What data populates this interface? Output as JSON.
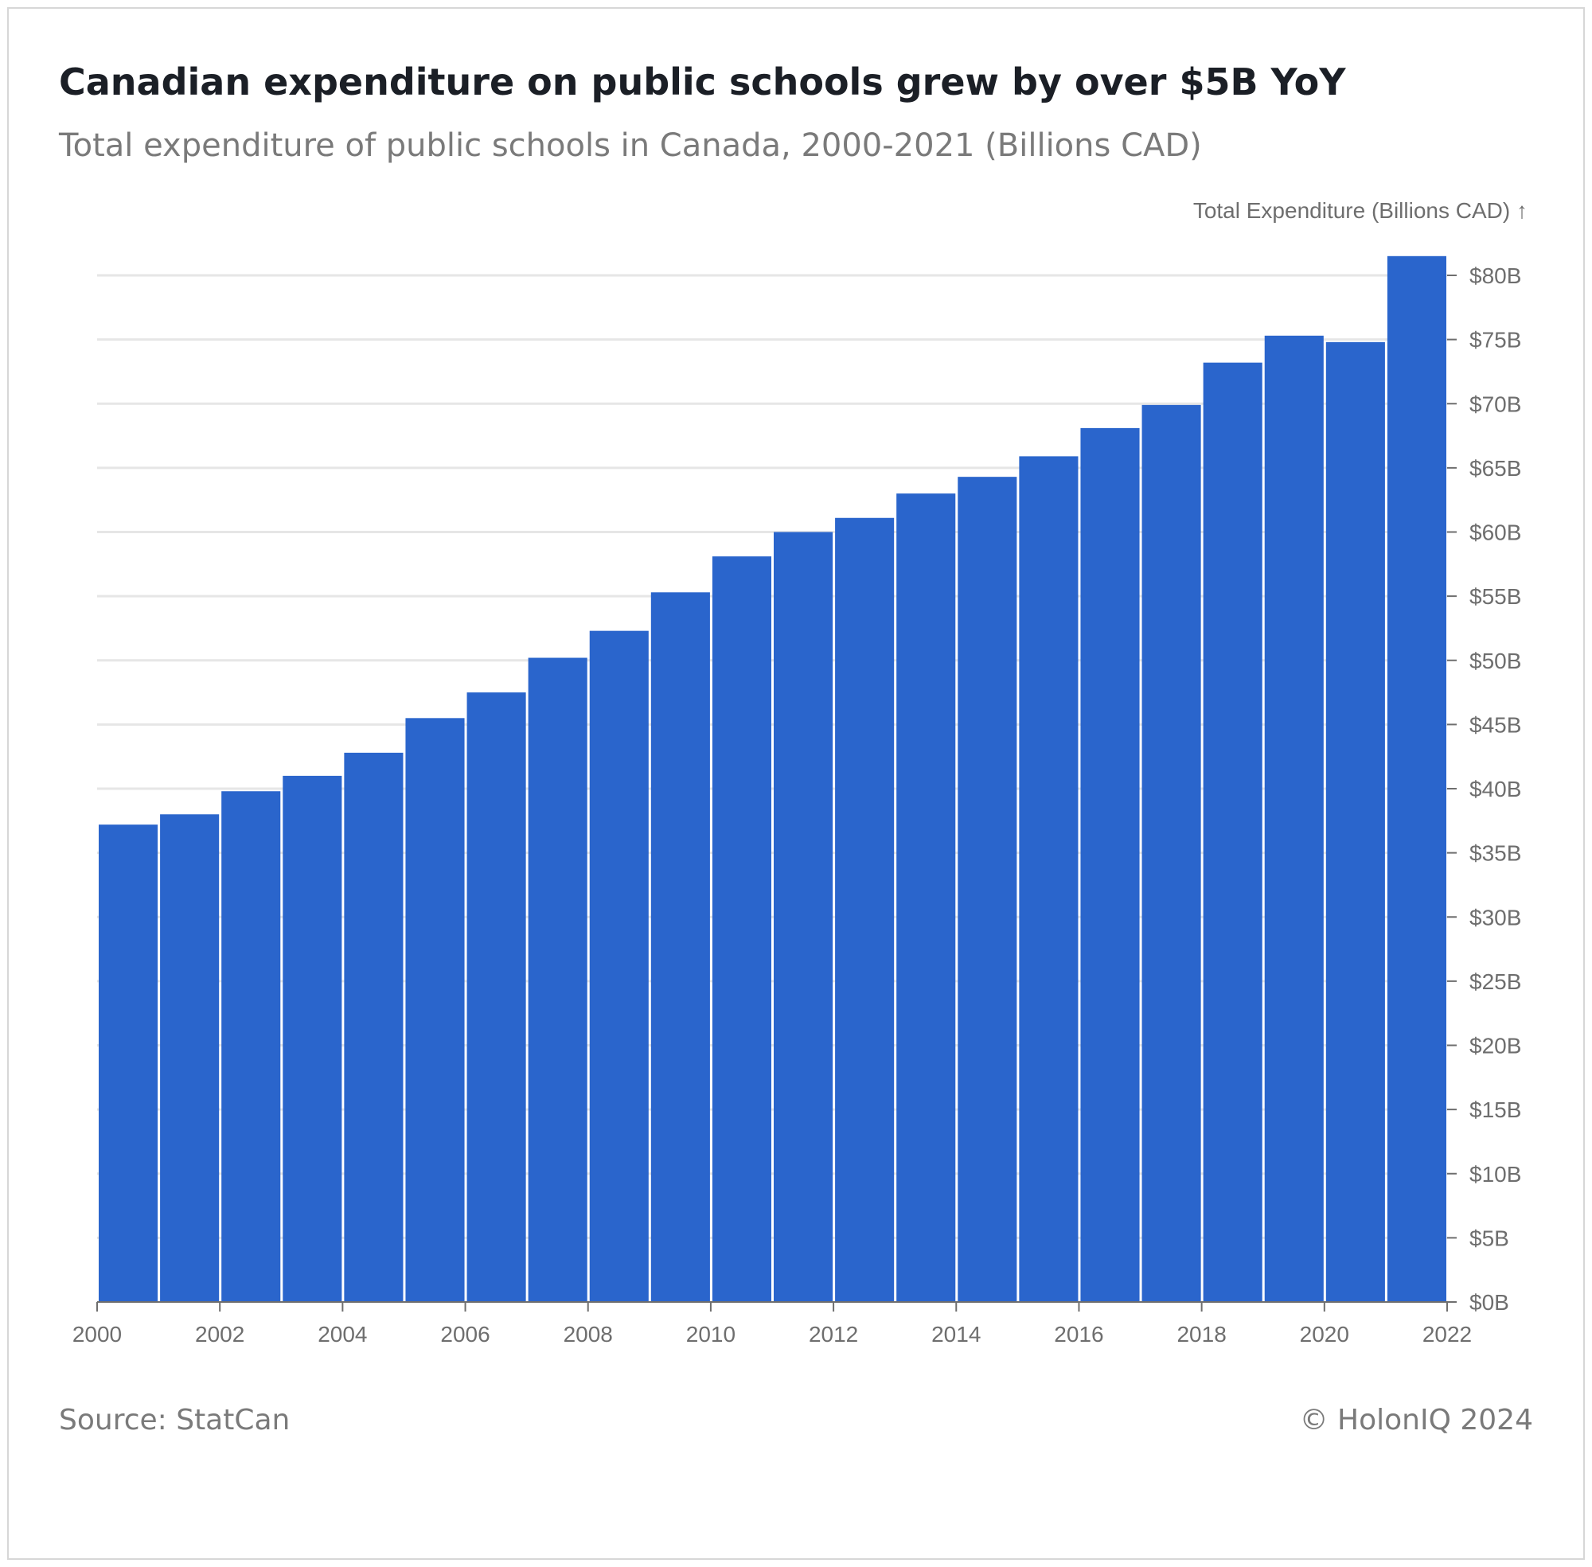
{
  "title": "Canadian expenditure on public schools grew by over $5B YoY",
  "subtitle": "Total expenditure of public schools in Canada, 2000-2021 (Billions CAD)",
  "footer": {
    "source": "Source: StatCan",
    "copyright": "© HolonIQ 2024"
  },
  "colors": {
    "bar": "#2a65cc",
    "grid": "#e6e6e6",
    "axis": "#6e6e6e",
    "text": "#6e6e6e"
  },
  "chart_data": {
    "type": "bar",
    "ylabel": "Total Expenditure (Billions CAD) ↑",
    "y_axis_side": "right",
    "ylim": [
      0,
      80
    ],
    "ytick_step": 5,
    "ytick_labels": [
      "$0B",
      "$5B",
      "$10B",
      "$15B",
      "$20B",
      "$25B",
      "$30B",
      "$35B",
      "$40B",
      "$45B",
      "$50B",
      "$55B",
      "$60B",
      "$65B",
      "$70B",
      "$75B",
      "$80B"
    ],
    "xlim": [
      2000,
      2022
    ],
    "xtick_labels": [
      "2000",
      "2002",
      "2004",
      "2006",
      "2008",
      "2010",
      "2012",
      "2014",
      "2016",
      "2018",
      "2020",
      "2022"
    ],
    "categories": [
      2000,
      2001,
      2002,
      2003,
      2004,
      2005,
      2006,
      2007,
      2008,
      2009,
      2010,
      2011,
      2012,
      2013,
      2014,
      2015,
      2016,
      2017,
      2018,
      2019,
      2020,
      2021
    ],
    "values": [
      37.2,
      38.0,
      39.8,
      41.0,
      42.8,
      45.5,
      47.5,
      50.2,
      52.3,
      55.3,
      58.1,
      60.0,
      61.1,
      63.0,
      64.3,
      65.9,
      68.1,
      69.9,
      73.2,
      75.3,
      74.8,
      81.5
    ],
    "grid": true,
    "legend": "none"
  }
}
